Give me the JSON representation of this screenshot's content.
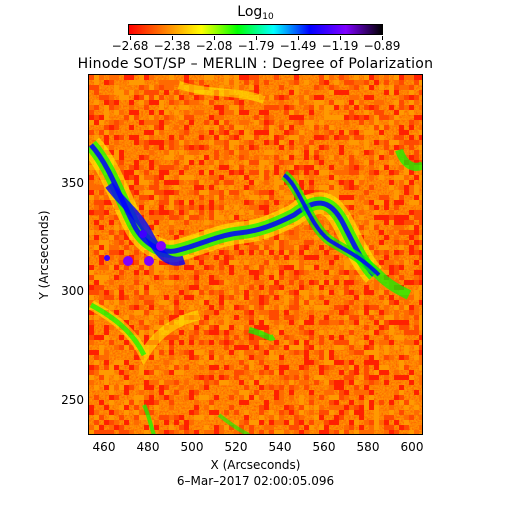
{
  "colorbar": {
    "title_main": "Log",
    "title_sub": "10",
    "tick_labels": [
      "−2.68",
      "−2.38",
      "−2.08",
      "−1.79",
      "−1.49",
      "−1.19",
      "−0.89"
    ],
    "range": [
      -2.68,
      -0.89
    ],
    "colormap": [
      "#ff0000",
      "#ff7f00",
      "#ffff00",
      "#00ff00",
      "#00ffff",
      "#0000ff",
      "#7f00ff",
      "#000000"
    ]
  },
  "title": "Hinode SOT/SP – MERLIN : Degree of Polarization",
  "map": {
    "xlabel": "X (Arcseconds)",
    "ylabel": "Y (Arcseconds)",
    "xlim": [
      450,
      603
    ],
    "ylim": [
      234,
      395
    ],
    "xticks": [
      "460",
      "480",
      "500",
      "520",
      "540",
      "560",
      "580",
      "600"
    ],
    "yticks": [
      "250",
      "300",
      "350"
    ],
    "background_colors": [
      "#ff2000",
      "#ff4a00",
      "#ff6a00",
      "#ff9a00"
    ]
  },
  "timestamp": "6–Mar–2017 02:00:05.096"
}
